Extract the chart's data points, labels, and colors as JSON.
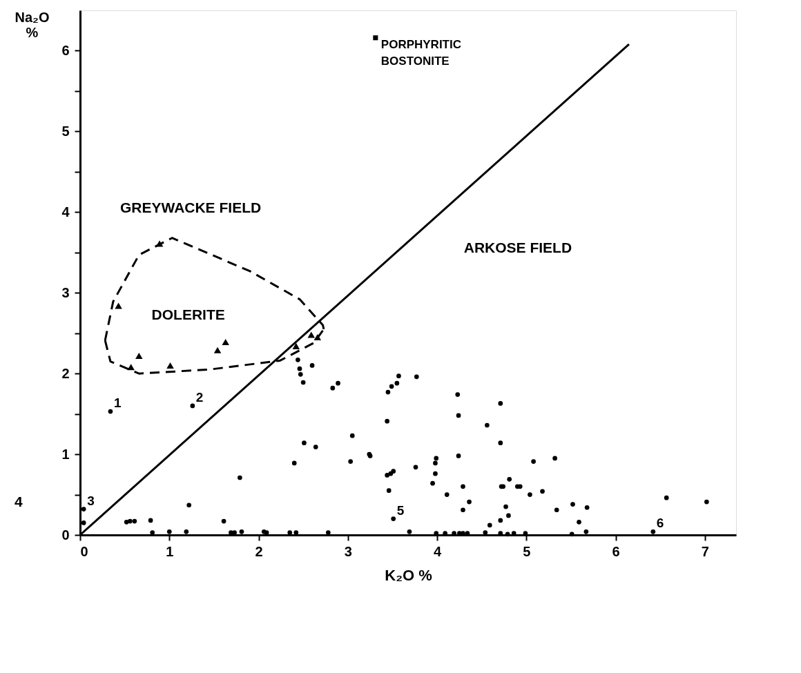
{
  "chart_data": {
    "type": "scatter",
    "xlabel": "K₂O %",
    "ylabel": "Na₂O %",
    "xlim": [
      0,
      7.35
    ],
    "ylim": [
      0,
      6.5
    ],
    "xticks": [
      0,
      1,
      2,
      3,
      4,
      5,
      6,
      7
    ],
    "yticks": [
      0,
      {
        "value": 0.5,
        "label": null
      },
      1,
      {
        "value": 1.5,
        "label": null
      },
      2,
      {
        "value": 2.5,
        "label": null
      },
      3,
      {
        "value": 3.5,
        "label": null
      },
      4,
      {
        "value": 4.5,
        "label": null
      },
      5,
      {
        "value": 5.5,
        "label": null
      },
      6
    ],
    "grid": false,
    "series": [
      {
        "type": "line",
        "color": "#000000",
        "line_style": "solid",
        "x": [
          0,
          6.15
        ],
        "values": [
          0,
          6.08
        ]
      },
      {
        "type": "line",
        "color": "#000000",
        "line_style": "dashed",
        "x": [
          0.28,
          0.37,
          0.66,
          1.03,
          1.9,
          2.46,
          2.72,
          2.73
        ],
        "values": [
          2.41,
          2.89,
          3.47,
          3.68,
          3.27,
          2.92,
          2.6,
          2.55
        ]
      },
      {
        "type": "line",
        "color": "#000000",
        "line_style": "dashed",
        "x": [
          0.28,
          0.34,
          0.66,
          1.45,
          2.24,
          2.62,
          2.73
        ],
        "values": [
          2.41,
          2.15,
          2.0,
          2.05,
          2.16,
          2.38,
          2.55
        ]
      },
      {
        "color": "#000000",
        "marker": "triangle",
        "x": [
          0.89,
          0.43,
          0.66,
          0.57,
          1.01,
          1.54,
          1.63,
          2.42,
          2.59,
          2.66
        ],
        "values": [
          3.61,
          2.84,
          2.22,
          2.08,
          2.1,
          2.29,
          2.39,
          2.34,
          2.48,
          2.45
        ]
      },
      {
        "name": "PORPHYRITIC BOSTONITE",
        "color": "#000000",
        "marker": "square",
        "x": [
          3.31
        ],
        "values": [
          6.16
        ]
      },
      {
        "color": "#000000",
        "marker": "circle",
        "x": [
          0.34,
          1.26,
          0.04,
          0.04,
          2.44,
          2.46,
          2.47,
          2.5,
          2.6,
          2.83,
          2.89,
          2.51,
          2.64,
          3.05,
          2.4,
          3.03,
          1.79,
          1.22,
          1.61,
          0.52,
          0.56,
          0.61,
          0.79,
          0.81,
          1.0,
          1.19,
          1.69,
          1.73,
          1.81,
          2.06,
          2.09,
          2.35,
          2.42,
          2.78,
          3.57,
          3.77,
          3.55,
          3.49,
          3.45,
          3.44,
          4.23,
          4.24,
          4.71,
          4.56,
          4.71,
          3.24,
          3.25,
          3.76,
          3.99,
          3.98,
          3.98,
          3.95,
          4.24,
          4.11,
          4.29,
          4.36,
          4.29,
          3.44,
          3.48,
          3.51,
          3.46,
          3.51,
          3.69,
          3.99,
          4.09,
          4.19,
          4.25,
          4.29,
          4.34,
          4.54,
          4.59,
          4.71,
          4.77,
          4.8,
          4.71,
          4.79,
          4.86,
          4.99,
          4.72,
          4.74,
          4.81,
          4.9,
          4.93,
          5.08,
          5.32,
          5.04,
          5.18,
          5.34,
          5.52,
          5.59,
          5.68,
          5.51,
          5.67,
          6.42,
          6.57,
          7.02
        ],
        "values": [
          1.53,
          1.6,
          0.32,
          0.15,
          2.17,
          2.06,
          1.99,
          1.89,
          2.1,
          1.82,
          1.88,
          1.14,
          1.09,
          1.23,
          0.89,
          0.91,
          0.71,
          0.37,
          0.17,
          0.16,
          0.17,
          0.17,
          0.18,
          0.03,
          0.04,
          0.04,
          0.03,
          0.03,
          0.04,
          0.04,
          0.03,
          0.03,
          0.03,
          0.03,
          1.97,
          1.96,
          1.88,
          1.84,
          1.77,
          1.41,
          1.74,
          1.48,
          1.63,
          1.36,
          1.14,
          1.0,
          0.98,
          0.84,
          0.95,
          0.89,
          0.76,
          0.64,
          0.98,
          0.5,
          0.6,
          0.41,
          0.31,
          0.74,
          0.76,
          0.79,
          0.55,
          0.2,
          0.04,
          0.02,
          0.02,
          0.02,
          0.02,
          0.02,
          0.02,
          0.03,
          0.12,
          0.18,
          0.35,
          0.24,
          0.02,
          0.01,
          0.02,
          0.02,
          0.6,
          0.6,
          0.69,
          0.6,
          0.6,
          0.91,
          0.95,
          0.5,
          0.54,
          0.31,
          0.38,
          0.16,
          0.34,
          0.01,
          0.04,
          0.04,
          0.46,
          0.41
        ]
      }
    ],
    "annotations": [
      "GREYWACKE FIELD",
      "ARKOSE FIELD",
      "DOLERITE",
      "4",
      {
        "text": "1",
        "x": 0.34,
        "y": 1.53
      },
      {
        "text": "2",
        "x": 1.26,
        "y": 1.6
      },
      {
        "text": "3",
        "x": 0.04,
        "y": 0.32
      },
      {
        "text": "5",
        "x": 3.51,
        "y": 0.2
      },
      {
        "text": "6",
        "x": 6.42,
        "y": 0.04
      }
    ]
  }
}
